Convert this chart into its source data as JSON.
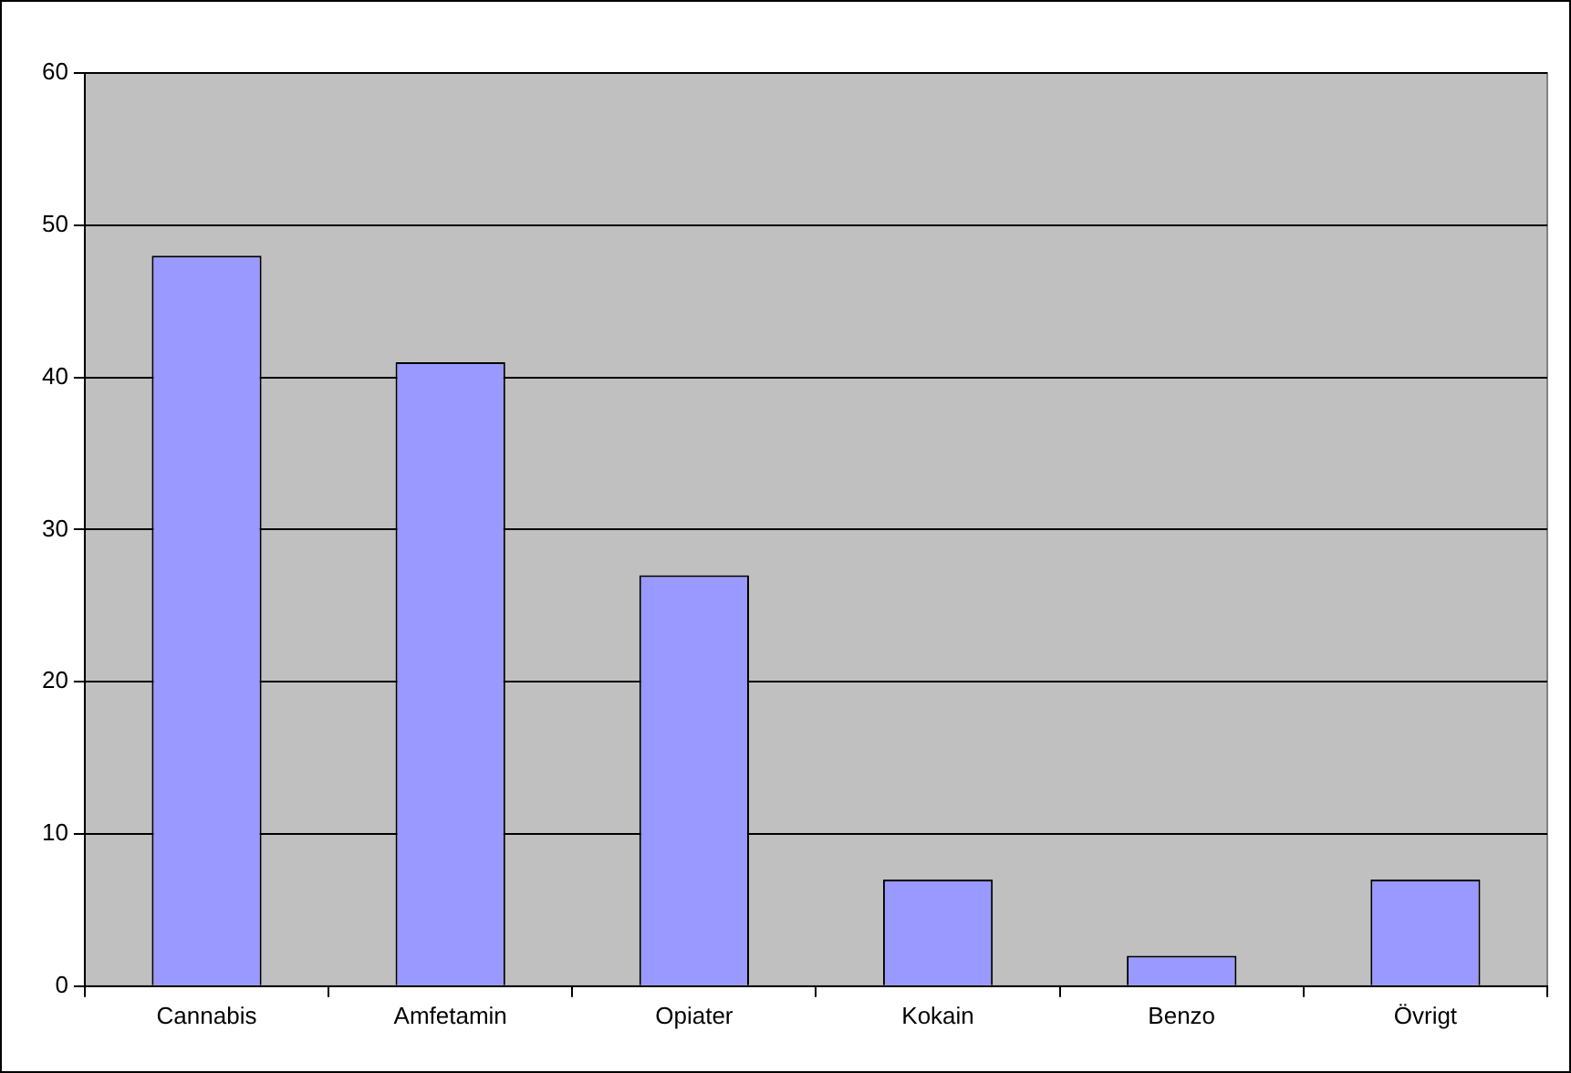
{
  "chart_data": {
    "type": "bar",
    "categories": [
      "Cannabis",
      "Amfetamin",
      "Opiater",
      "Kokain",
      "Benzo",
      "Övrigt"
    ],
    "values": [
      48,
      41,
      27,
      7,
      2,
      7
    ],
    "color": "#9999ff",
    "ylim": [
      0,
      60
    ],
    "yticks": [
      0,
      10,
      20,
      30,
      40,
      50,
      60
    ],
    "grid": "y",
    "legend": false
  }
}
